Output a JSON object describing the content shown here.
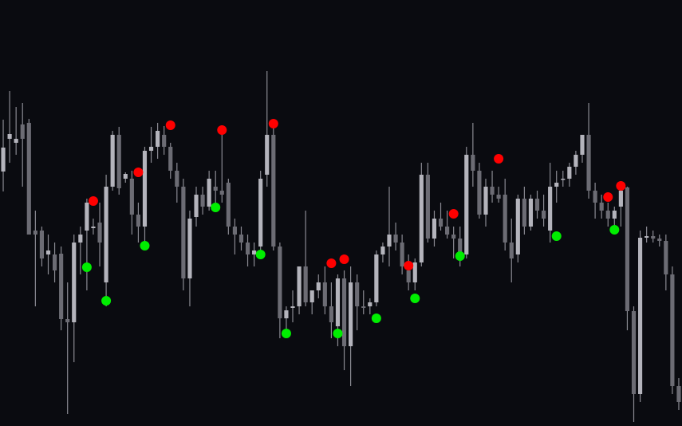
{
  "chart_data": {
    "type": "candlestick",
    "ylim": [
      0,
      534
    ],
    "xlim": [
      -0.5,
      105.5
    ],
    "up_color": "#b4b4bc",
    "down_color": "#6c6c74",
    "wick_color": "#8a8a92",
    "open": [
      319,
      360,
      355,
      378,
      380,
      245,
      245,
      215,
      215,
      216,
      134,
      130,
      230,
      245,
      248,
      255,
      180,
      300,
      365,
      310,
      310,
      265,
      250,
      345,
      350,
      365,
      350,
      320,
      300,
      185,
      262,
      290,
      275,
      300,
      295,
      305,
      250,
      240,
      230,
      215,
      225,
      315,
      365,
      225,
      135,
      148,
      150,
      200,
      155,
      170,
      180,
      150,
      125,
      185,
      100,
      180,
      150,
      150,
      155,
      215,
      225,
      240,
      230,
      195,
      180,
      205,
      315,
      235,
      260,
      250,
      240,
      235,
      215,
      340,
      320,
      265,
      300,
      290,
      290,
      230,
      215,
      285,
      250,
      285,
      270,
      245,
      300,
      310,
      310,
      325,
      340,
      365,
      295,
      280,
      270,
      260,
      275,
      299,
      144,
      40,
      236,
      238,
      235,
      232,
      190,
      50
    ],
    "high": [
      384,
      420,
      400,
      405,
      385,
      270,
      250,
      240,
      230,
      225,
      180,
      240,
      250,
      285,
      260,
      280,
      315,
      370,
      375,
      318,
      320,
      280,
      350,
      375,
      380,
      376,
      355,
      330,
      310,
      270,
      300,
      300,
      320,
      320,
      370,
      310,
      260,
      250,
      240,
      230,
      320,
      445,
      380,
      230,
      150,
      170,
      200,
      270,
      170,
      190,
      200,
      180,
      190,
      195,
      200,
      190,
      170,
      160,
      220,
      230,
      300,
      255,
      240,
      215,
      210,
      330,
      330,
      270,
      280,
      270,
      250,
      250,
      350,
      380,
      330,
      310,
      320,
      300,
      310,
      260,
      290,
      300,
      290,
      295,
      290,
      330,
      320,
      320,
      330,
      345,
      365,
      405,
      305,
      290,
      280,
      275,
      300,
      300,
      150,
      245,
      250,
      245,
      240,
      240,
      200,
      60
    ],
    "low": [
      294,
      330,
      340,
      300,
      240,
      150,
      200,
      190,
      180,
      120,
      15,
      80,
      190,
      170,
      240,
      200,
      150,
      295,
      290,
      305,
      240,
      230,
      225,
      330,
      335,
      340,
      310,
      280,
      170,
      150,
      250,
      265,
      270,
      280,
      280,
      240,
      215,
      220,
      200,
      200,
      210,
      300,
      220,
      110,
      120,
      130,
      140,
      150,
      140,
      160,
      140,
      110,
      100,
      70,
      50,
      120,
      140,
      140,
      150,
      205,
      200,
      220,
      190,
      170,
      170,
      200,
      230,
      225,
      245,
      235,
      210,
      200,
      210,
      300,
      260,
      250,
      280,
      280,
      220,
      180,
      205,
      240,
      245,
      260,
      250,
      230,
      280,
      300,
      300,
      315,
      330,
      285,
      260,
      260,
      250,
      245,
      250,
      120,
      5,
      30,
      230,
      230,
      225,
      170,
      40,
      20
    ],
    "close": [
      349,
      366,
      360,
      360,
      240,
      240,
      210,
      220,
      195,
      134,
      130,
      230,
      240,
      280,
      250,
      230,
      300,
      365,
      298,
      316,
      265,
      250,
      345,
      350,
      370,
      350,
      320,
      300,
      185,
      260,
      290,
      275,
      310,
      295,
      290,
      250,
      240,
      230,
      215,
      220,
      310,
      365,
      225,
      135,
      145,
      150,
      200,
      155,
      170,
      180,
      150,
      130,
      185,
      100,
      180,
      150,
      148,
      155,
      215,
      225,
      240,
      230,
      200,
      180,
      205,
      315,
      235,
      260,
      250,
      240,
      235,
      210,
      340,
      320,
      265,
      300,
      290,
      285,
      230,
      210,
      285,
      250,
      285,
      270,
      260,
      300,
      305,
      310,
      325,
      340,
      365,
      295,
      280,
      270,
      260,
      270,
      295,
      144,
      40,
      236,
      238,
      235,
      232,
      190,
      50,
      30
    ],
    "markers": [
      {
        "color": "#ff0000",
        "x": [
          14,
          21,
          26,
          34,
          42,
          51,
          53,
          63,
          70,
          77,
          94,
          96
        ],
        "values": [
          282,
          318,
          377,
          371,
          379,
          204,
          209,
          201,
          266,
          335,
          287,
          301
        ]
      },
      {
        "color": "#00ee00",
        "x": [
          13,
          16,
          22,
          33,
          40,
          44,
          52,
          58,
          64,
          71,
          86,
          95
        ],
        "values": [
          199,
          157,
          226,
          274,
          215,
          116,
          116,
          135,
          160,
          213,
          238,
          246
        ]
      }
    ]
  }
}
